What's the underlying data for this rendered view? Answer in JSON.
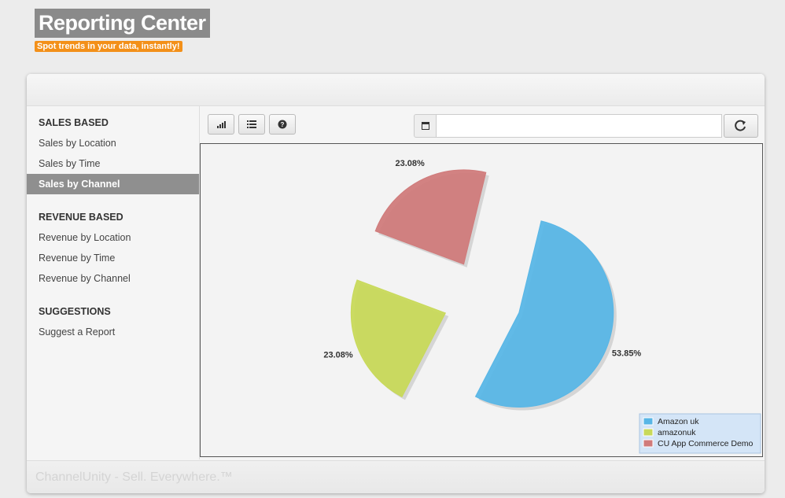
{
  "header": {
    "title": "Reporting Center",
    "subtitle": "Spot trends in your data, instantly!"
  },
  "sidebar": [
    {
      "heading": "SALES BASED",
      "items": [
        "Sales by Location",
        "Sales by Time",
        "Sales by Channel"
      ]
    },
    {
      "heading": "REVENUE BASED",
      "items": [
        "Revenue by Location",
        "Revenue by Time",
        "Revenue by Channel"
      ]
    },
    {
      "heading": "SUGGESTIONS",
      "items": [
        "Suggest a Report"
      ]
    }
  ],
  "footer": "ChannelUnity - Sell. Everywhere.™",
  "chart_data": {
    "type": "pie",
    "categories": [
      "Amazon uk",
      "amazonuk",
      "CU App Commerce Demo"
    ],
    "values": [
      53.85,
      23.08,
      23.08
    ],
    "value_labels": [
      "53.85%",
      "23.08%",
      "23.08%"
    ],
    "colors": [
      "#58b6e6",
      "#c8d95a",
      "#d07b7b"
    ],
    "legend": "bottom-right"
  }
}
